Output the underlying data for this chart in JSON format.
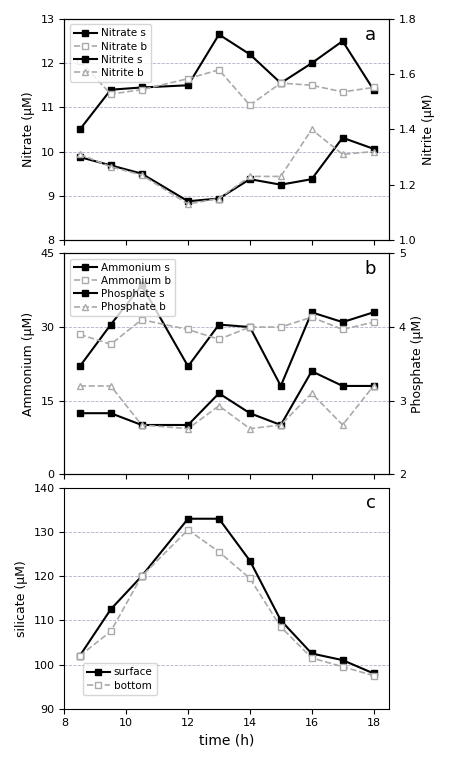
{
  "time": [
    8.5,
    9.5,
    10.5,
    12,
    13,
    14,
    15,
    16,
    17,
    18
  ],
  "nitrate_s": [
    10.5,
    11.4,
    11.45,
    11.5,
    12.65,
    12.2,
    11.55,
    12.0,
    12.5,
    11.4
  ],
  "nitrate_b": [
    12.05,
    11.3,
    11.4,
    11.65,
    11.85,
    11.05,
    11.55,
    11.5,
    11.35,
    11.45
  ],
  "nitrite_s": [
    1.3,
    1.27,
    1.24,
    1.14,
    1.15,
    1.22,
    1.2,
    1.22,
    1.37,
    1.33
  ],
  "nitrite_b": [
    1.31,
    1.265,
    1.235,
    1.13,
    1.15,
    1.23,
    1.23,
    1.4,
    1.31,
    1.32
  ],
  "ammonium_s": [
    22,
    30.5,
    38.5,
    22,
    30.5,
    30,
    18,
    33,
    31,
    33
  ],
  "ammonium_b": [
    28.5,
    26.5,
    31.5,
    29.5,
    27.5,
    30,
    30,
    32,
    29.5,
    31
  ],
  "phosphate_s": [
    2.83,
    2.83,
    2.67,
    2.67,
    3.1,
    2.83,
    2.67,
    3.4,
    3.2,
    3.2
  ],
  "phosphate_b": [
    3.2,
    3.2,
    2.67,
    2.62,
    2.93,
    2.62,
    2.67,
    3.1,
    2.67,
    3.2
  ],
  "silicate_s": [
    102,
    112.5,
    120,
    133,
    133,
    123.5,
    110,
    102.5,
    101,
    98
  ],
  "silicate_b": [
    102,
    107.5,
    120,
    130.5,
    125.5,
    119.5,
    108.5,
    101.5,
    99.5,
    97.5
  ],
  "nitrate_ylim": [
    8,
    13
  ],
  "nitrate_yticks": [
    8,
    9,
    10,
    11,
    12,
    13
  ],
  "nitrite_ylim": [
    1.0,
    1.8
  ],
  "nitrite_yticks": [
    1.0,
    1.2,
    1.4,
    1.6,
    1.8
  ],
  "ammonium_ylim": [
    0,
    45
  ],
  "ammonium_yticks": [
    0,
    15,
    30,
    45
  ],
  "phosphate_ylim": [
    2,
    5
  ],
  "phosphate_yticks": [
    2,
    3,
    4,
    5
  ],
  "silicate_ylim": [
    90,
    140
  ],
  "silicate_yticks": [
    90,
    100,
    110,
    120,
    130,
    140
  ],
  "xlim": [
    8,
    18.5
  ],
  "xticks": [
    8,
    10,
    12,
    14,
    16,
    18
  ],
  "color_solid": "#000000",
  "color_dashed": "#aaaaaa",
  "bg_color": "#ffffff",
  "grid_color": "#b0b0cc"
}
